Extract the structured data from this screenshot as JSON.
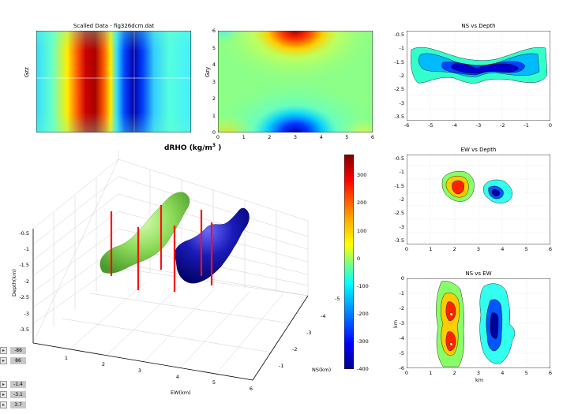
{
  "colors": {
    "accent_red": "#ff1010",
    "cloud_green": "#8edc5a",
    "cloud_blue": "#1a1ab8"
  },
  "top_panels": {
    "gzz": {
      "title": "Scalled Data - fig326dcm.dat",
      "ylabel": "Gzz"
    },
    "gzy": {
      "ylabel": "Gzy",
      "xticks": [
        "0",
        "1",
        "2",
        "3",
        "4",
        "5",
        "6"
      ],
      "yticks": [
        "0",
        "1",
        "2",
        "3",
        "4",
        "5",
        "6"
      ]
    }
  },
  "main_title": {
    "prefix": "dRHO (kg/m",
    "sup": "3",
    "suffix": " )"
  },
  "colorbar": {
    "ticks": [
      "300",
      "200",
      "100",
      "0",
      "-100",
      "-200",
      "-300",
      "-400"
    ]
  },
  "plot3d": {
    "zlabel": "Depth(km)",
    "zticks": [
      "-0.5",
      "-1",
      "-1.5",
      "-2",
      "-2.5",
      "-3",
      "-3.5"
    ],
    "xlabel": "EW(km)",
    "xticks": [
      "1",
      "2",
      "3",
      "4",
      "5",
      "6"
    ],
    "ylabel": "NS(km)",
    "yticks": [
      "-1",
      "-2",
      "-3",
      "-4",
      "-5"
    ]
  },
  "chart_data": [
    {
      "type": "heatmap",
      "title": "Scalled Data - fig326dcm.dat",
      "ylabel": "Gzz",
      "description_values": {
        "positive_lobe_center_x": 1.3,
        "negative_lobe_center_x": 2.3
      }
    },
    {
      "type": "heatmap",
      "title": "",
      "ylabel": "Gzy",
      "xlim": [
        0,
        6
      ],
      "ylim": [
        0,
        6
      ],
      "maxima": [
        {
          "x": 3,
          "y": 6
        }
      ],
      "minima": [
        {
          "x": 3,
          "y": 0.5
        }
      ]
    },
    {
      "type": "contour",
      "title": "NS vs Depth",
      "xlim": [
        -6,
        0
      ],
      "ylim": [
        -3.5,
        -0.3
      ],
      "xticks": [
        "-6",
        "-5",
        "-4",
        "-3",
        "-2",
        "-1",
        "0"
      ],
      "yticks": [
        "-0.5",
        "-1",
        "-1.5",
        "-2",
        "-2.5",
        "-3",
        "-3.5"
      ]
    },
    {
      "type": "contour",
      "title": "EW vs Depth",
      "xlim": [
        0,
        6
      ],
      "ylim": [
        -3.5,
        -0.3
      ],
      "xticks": [
        "0",
        "1",
        "2",
        "3",
        "4",
        "5",
        "6"
      ],
      "yticks": [
        "-0.5",
        "-1",
        "-1.5",
        "-2",
        "-2.5",
        "-3",
        "-3.5"
      ],
      "bodies": [
        {
          "x": 2.2,
          "z": -1.4,
          "sign": "positive"
        },
        {
          "x": 3.7,
          "z": -1.6,
          "sign": "negative"
        }
      ]
    },
    {
      "type": "contour",
      "title": "NS vs EW",
      "xlabel": "km",
      "ylabel": "km",
      "xlim": [
        0,
        6
      ],
      "ylim": [
        -6,
        0
      ],
      "xticks": [
        "0",
        "1",
        "2",
        "3",
        "4",
        "5",
        "6"
      ],
      "yticks": [
        "0",
        "-1",
        "-2",
        "-3",
        "-4",
        "-5",
        "-6"
      ]
    }
  ],
  "side_panels": {
    "ns_depth": {
      "title": "NS vs Depth"
    },
    "ew_depth": {
      "title": "EW vs Depth"
    },
    "ns_ew": {
      "title": "NS vs EW",
      "xlabel": "km",
      "ylabel": "km"
    }
  },
  "controls": [
    {
      "arrow": "▸",
      "value": "-86"
    },
    {
      "arrow": "▸",
      "value": "86"
    },
    {
      "arrow": "▸",
      "value": "-1.4"
    },
    {
      "arrow": "▸",
      "value": "-3.1"
    },
    {
      "arrow": "▸",
      "value": "3.7"
    }
  ]
}
